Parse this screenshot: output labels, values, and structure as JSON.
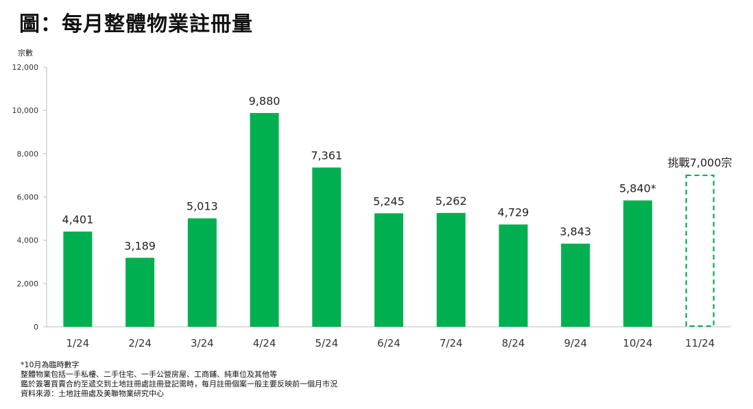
{
  "header": {
    "title": "圖：每月整體物業註冊量"
  },
  "chart_data": {
    "type": "bar",
    "title": "圖：每月整體物業註冊量",
    "ylabel": "宗數",
    "xlabel": "",
    "ylim": [
      0,
      12000
    ],
    "yticks": [
      0,
      2000,
      4000,
      6000,
      8000,
      10000,
      12000
    ],
    "ytick_labels": [
      "0",
      "2,000",
      "4,000",
      "6,000",
      "8,000",
      "10,000",
      "12,000"
    ],
    "categories": [
      "1/24",
      "2/24",
      "3/24",
      "4/24",
      "5/24",
      "6/24",
      "7/24",
      "8/24",
      "9/24",
      "10/24",
      "11/24"
    ],
    "values": [
      4401,
      3189,
      5013,
      9880,
      7361,
      5245,
      5262,
      4729,
      3843,
      5840,
      null
    ],
    "data_labels": [
      "4,401",
      "3,189",
      "5,013",
      "9,880",
      "7,361",
      "5,245",
      "5,262",
      "4,729",
      "3,843",
      "5,840*",
      ""
    ],
    "target": {
      "category": "11/24",
      "value": 7000,
      "label": "挑戰7,000宗",
      "style": "dashed-outline"
    },
    "bar_color": "#00b050",
    "grid": false,
    "legend": "none"
  },
  "notes": [
    "*10月為臨時數字",
    "整體物業包括一手私樓、二手住宅、一手公營房屋、工商鋪、純車位及其他等",
    "鑑於簽署買賣合約至遞交到土地註冊處註冊登記需時，每月註冊個案一般主要反映前一個月市況",
    "資料來源：土地註冊處及美聯物業研究中心"
  ]
}
